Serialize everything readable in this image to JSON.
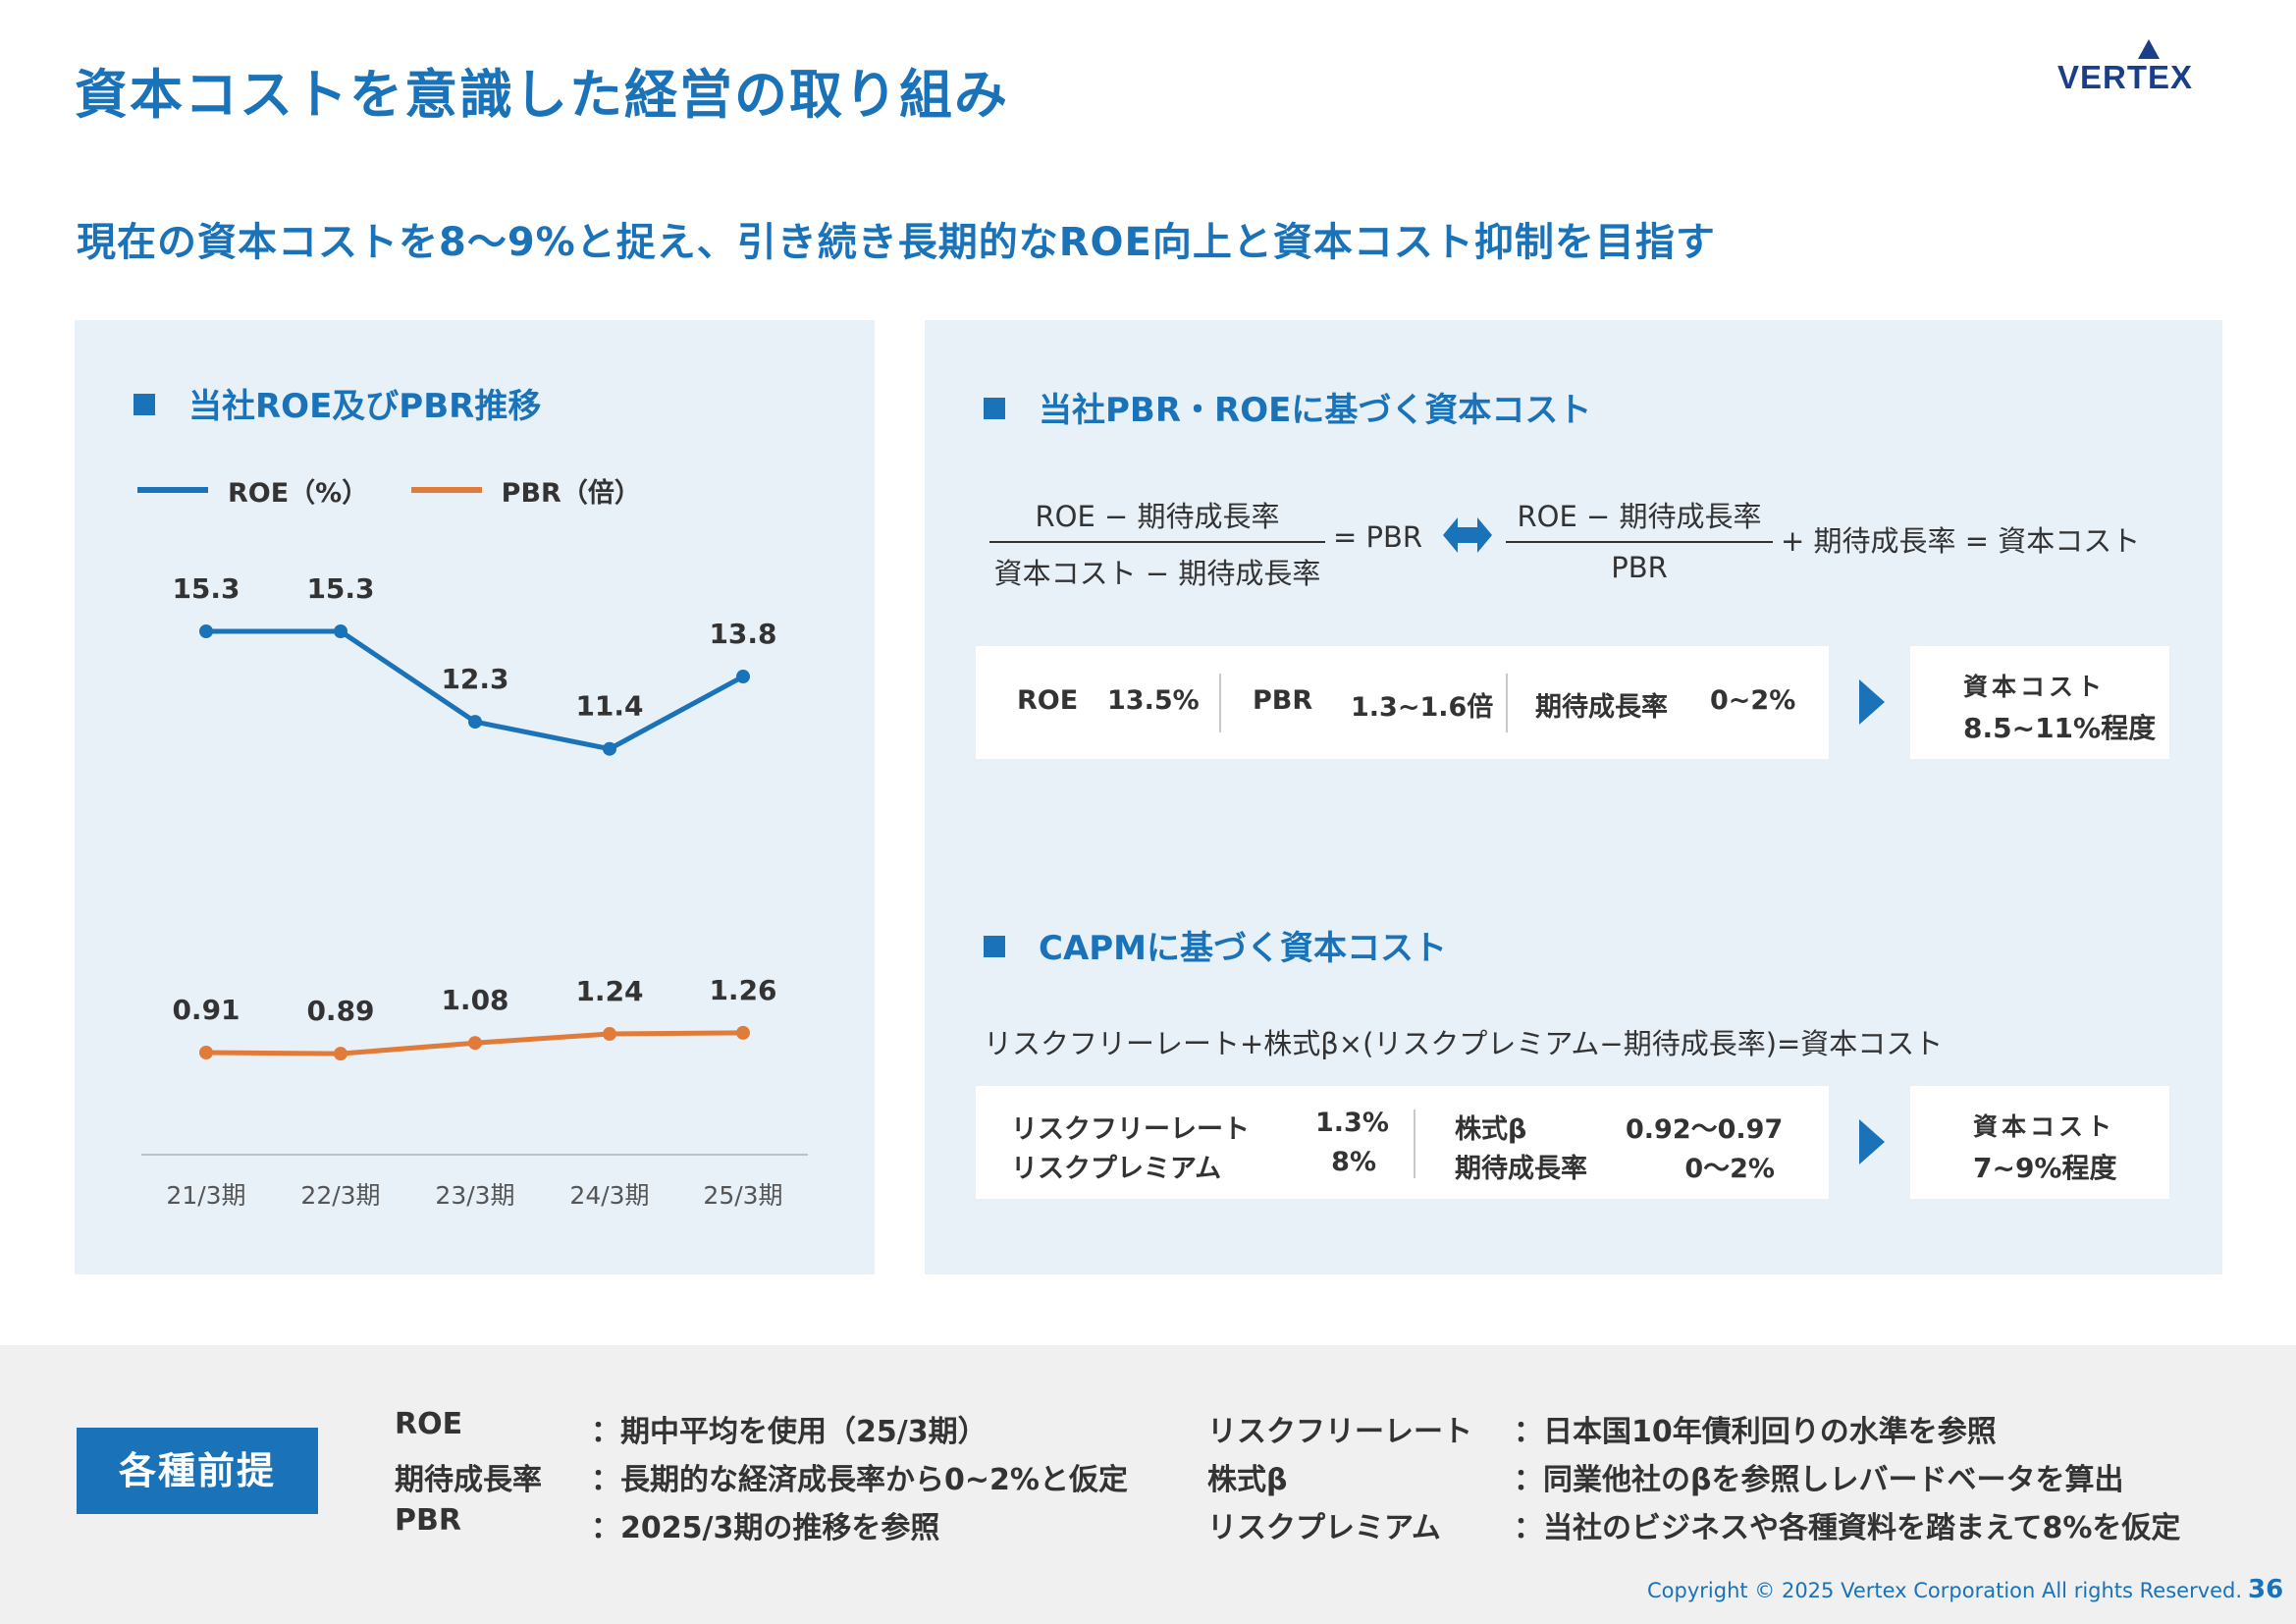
{
  "header": {
    "title": "資本コストを意識した経営の取り組み",
    "logo_text": "VERTEX",
    "subtitle": "現在の資本コストを8～9%と捉え、引き続き長期的なROE向上と資本コスト抑制を目指す"
  },
  "left_panel": {
    "heading": "当社ROE及びPBR推移",
    "legend_roe": "ROE（%）",
    "legend_pbr": "PBR（倍）"
  },
  "chart_data": {
    "type": "line",
    "title": "当社ROE及びPBR推移",
    "categories": [
      "21/3期",
      "22/3期",
      "23/3期",
      "24/3期",
      "25/3期"
    ],
    "series": [
      {
        "name": "ROE（%）",
        "values": [
          15.3,
          15.3,
          12.3,
          11.4,
          13.8
        ],
        "labels": [
          "15.3",
          "15.3",
          "12.3",
          "11.4",
          "13.8"
        ],
        "color": "#1a72b8"
      },
      {
        "name": "PBR（倍）",
        "values": [
          0.91,
          0.89,
          1.08,
          1.24,
          1.26
        ],
        "labels": [
          "0.91",
          "0.89",
          "1.08",
          "1.24",
          "1.26"
        ],
        "color": "#e07b39"
      }
    ],
    "xlabel": "",
    "ylabel": "",
    "grid": false,
    "legend": "top-left"
  },
  "pbr_section": {
    "heading": "当社PBR・ROEに基づく資本コスト",
    "f1_num": "ROE − 期待成長率",
    "f1_den": "資本コスト − 期待成長率",
    "f1_eq": "= PBR",
    "f2_num": "ROE − 期待成長率",
    "f2_den": "PBR",
    "f2_tail": "+ 期待成長率 = 資本コスト",
    "roe_label": "ROE",
    "roe_value": "13.5%",
    "pbr_label": "PBR",
    "pbr_value": "1.3~1.6倍",
    "growth_label": "期待成長率",
    "growth_value": "0~2%",
    "result_label": "資本コスト",
    "result_value": "8.5~11%程度"
  },
  "capm_section": {
    "heading": "CAPMに基づく資本コスト",
    "formula": "リスクフリーレート+株式β×(リスクプレミアム−期待成長率)=資本コスト",
    "rf_label": "リスクフリーレート",
    "rf_value": "1.3%",
    "rp_label": "リスクプレミアム",
    "rp_value": "8%",
    "beta_label": "株式β",
    "beta_value": "0.92～0.97",
    "growth_label": "期待成長率",
    "growth_value": "0～2%",
    "result_label": "資本コスト",
    "result_value": "7~9%程度"
  },
  "footer": {
    "badge": "各種前提",
    "notes_left": [
      {
        "term": "ROE",
        "desc": "：期中平均を使用（25/3期）"
      },
      {
        "term": "期待成長率",
        "desc": "：長期的な経済成長率から0~2%と仮定"
      },
      {
        "term": "PBR",
        "desc": "：2025/3期の推移を参照"
      }
    ],
    "notes_right": [
      {
        "term": "リスクフリーレート",
        "desc": "：日本国10年債利回りの水準を参照"
      },
      {
        "term": "株式β",
        "desc": "：同業他社のβを参照しレバードベータを算出"
      },
      {
        "term": "リスクプレミアム",
        "desc": "：当社のビジネスや各種資料を踏まえて8%を仮定"
      }
    ],
    "copyright": "Copyright © 2025 Vertex Corporation All rights Reserved.",
    "page_number": "36"
  }
}
